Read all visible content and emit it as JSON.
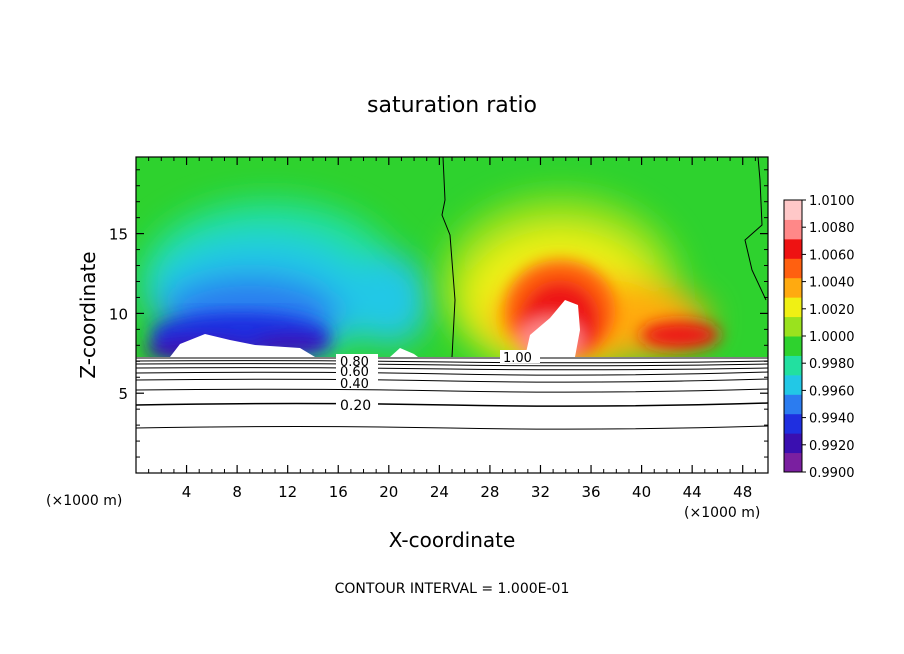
{
  "chart_data": {
    "type": "heatmap",
    "title": "saturation ratio",
    "xlabel": "X-coordinate",
    "ylabel": "Z-coordinate",
    "x_units_left": "(×1000 m)",
    "x_units_right": "(×1000 m)",
    "xlim": [
      0,
      50
    ],
    "ylim": [
      0,
      19.8
    ],
    "x_ticks": [
      4,
      8,
      12,
      16,
      20,
      24,
      28,
      32,
      36,
      40,
      44,
      48
    ],
    "x_tick_labels": [
      "4",
      "8",
      "12",
      "16",
      "20",
      "24",
      "28",
      "32",
      "36",
      "40",
      "44",
      "48"
    ],
    "y_ticks": [
      5,
      10,
      15
    ],
    "y_tick_labels": [
      "5",
      "10",
      "15"
    ],
    "colorbar": {
      "min": 0.99,
      "max": 1.01,
      "tick_labels": [
        "1.0100",
        "1.0080",
        "1.0060",
        "1.0040",
        "1.0020",
        "1.0000",
        "0.9980",
        "0.9960",
        "0.9940",
        "0.9920",
        "0.9900"
      ],
      "colors": [
        "#7a1fa0",
        "#3a0fb0",
        "#1f2fe0",
        "#2b7cf0",
        "#22c8e6",
        "#22e0a0",
        "#2ed22e",
        "#9ae21e",
        "#f0f014",
        "#ffaa10",
        "#ff6010",
        "#ee1212",
        "#ff8888",
        "#ffc8c8"
      ]
    },
    "contour_labels": [
      {
        "text": "0.80",
        "x": 17.6,
        "y": 7.0
      },
      {
        "text": "0.60",
        "x": 17.6,
        "y": 6.5
      },
      {
        "text": "0.40",
        "x": 17.6,
        "y": 5.7
      },
      {
        "text": "0.20",
        "x": 17.6,
        "y": 4.3
      },
      {
        "text": "1.00",
        "x": 30.0,
        "y": 7.2
      }
    ],
    "lower_contour_levels_y": [
      7.15,
      6.95,
      6.75,
      6.45,
      6.05,
      5.5,
      4.5,
      2.9
    ],
    "dry_region_marker_x": 24.5,
    "note": "CONTOUR INTERVAL = 1.000E-01"
  }
}
